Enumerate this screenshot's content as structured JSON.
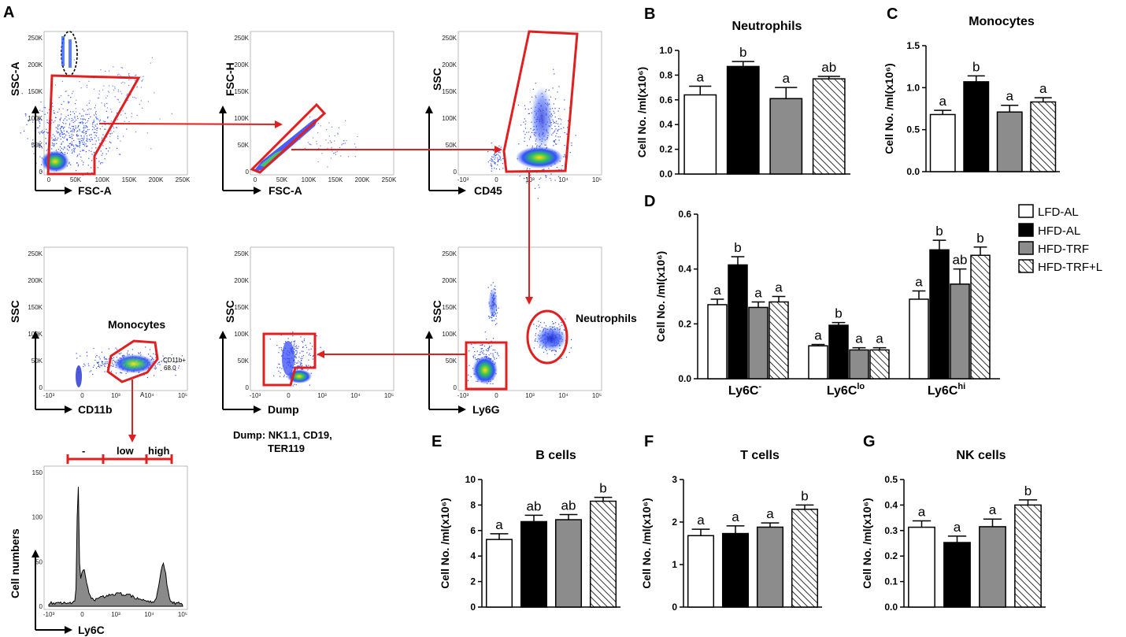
{
  "panels": {
    "A": "A",
    "B": "B",
    "C": "C",
    "D": "D",
    "E": "E",
    "F": "F",
    "G": "G"
  },
  "groups": [
    {
      "name": "LFD-AL",
      "fill": "#ffffff",
      "pattern": false
    },
    {
      "name": "HFD-AL",
      "fill": "#000000",
      "pattern": false
    },
    {
      "name": "HFD-TRF",
      "fill": "#8c8c8c",
      "pattern": false
    },
    {
      "name": "HFD-TRF+L",
      "fill": "#ffffff",
      "pattern": true
    }
  ],
  "flow": {
    "plots": [
      {
        "id": "p1",
        "xlabel": "FSC-A",
        "ylabel": "SSC-A",
        "xticks": [
          "0",
          "50K",
          "100K",
          "150K",
          "200K",
          "250K"
        ],
        "yticks": [
          "0",
          "50K",
          "100K",
          "150K",
          "200K",
          "250K"
        ]
      },
      {
        "id": "p2",
        "xlabel": "FSC-A",
        "ylabel": "FSC-H",
        "xticks": [
          "0",
          "50K",
          "100K",
          "150K",
          "200K",
          "250K"
        ],
        "yticks": [
          "0",
          "50K",
          "100K",
          "150K",
          "200K",
          "250K"
        ]
      },
      {
        "id": "p3",
        "xlabel": "CD45",
        "ylabel": "SSC",
        "xticks": [
          "-10³",
          "0",
          "10³",
          "10⁴",
          "10⁵"
        ],
        "yticks": [
          "0",
          "50K",
          "100K",
          "150K",
          "200K",
          "250K"
        ]
      },
      {
        "id": "p4",
        "xlabel": "CD11b",
        "ylabel": "SSC",
        "xticks": [
          "-10³",
          "0",
          "10³",
          "10⁴",
          "10⁵"
        ],
        "yticks": [
          "0",
          "50K",
          "100K",
          "150K",
          "200K",
          "250K"
        ]
      },
      {
        "id": "p5",
        "xlabel": "Dump",
        "ylabel": "SSC",
        "xticks": [
          "-10³",
          "0",
          "10³",
          "10⁴",
          "10⁵"
        ],
        "yticks": [
          "0",
          "50K",
          "100K",
          "150K",
          "200K",
          "250K"
        ]
      },
      {
        "id": "p6",
        "xlabel": "Ly6G",
        "ylabel": "SSC",
        "xticks": [
          "-10³",
          "0",
          "10³",
          "10⁴",
          "10⁵"
        ],
        "yticks": [
          "0",
          "50K",
          "100K",
          "150K",
          "200K",
          "250K"
        ]
      },
      {
        "id": "p7",
        "xlabel": "Ly6C",
        "ylabel": "Cell numbers",
        "xticks": [
          "-10³",
          "0",
          "10³",
          "10⁴",
          "10⁵"
        ],
        "yticks": [
          "0",
          "50",
          "100",
          "150"
        ]
      }
    ],
    "gate_labels": {
      "monocytes": "Monocytes",
      "cd11b_gate": "CD11b+",
      "cd11b_pct": "68.0",
      "neutrophils": "Neutrophils",
      "stray": "A"
    },
    "dump_note": [
      "Dump: NK1.1,  CD19,",
      "TER119"
    ],
    "histogram_gates": [
      "-",
      "low",
      "high"
    ]
  },
  "chart_data": [
    {
      "id": "B",
      "type": "bar",
      "title": "Neutrophils",
      "ylabel": "Cell No. /ml(x10⁶)",
      "ylim": [
        0,
        1.0
      ],
      "yticks": [
        "0.0",
        "0.2",
        "0.4",
        "0.6",
        "0.8",
        "1.0"
      ],
      "values": [
        0.64,
        0.87,
        0.61,
        0.77
      ],
      "errors": [
        0.07,
        0.04,
        0.09,
        0.02
      ],
      "sig": [
        "a",
        "b",
        "a",
        "ab"
      ]
    },
    {
      "id": "C",
      "type": "bar",
      "title": "Monocytes",
      "ylabel": "Cell No. /ml(x10⁶)",
      "ylim": [
        0,
        1.5
      ],
      "yticks": [
        "0.0",
        "0.5",
        "1.0",
        "1.5"
      ],
      "values": [
        0.68,
        1.07,
        0.71,
        0.83
      ],
      "errors": [
        0.05,
        0.07,
        0.08,
        0.05
      ],
      "sig": [
        "a",
        "b",
        "a",
        "a"
      ]
    },
    {
      "id": "D",
      "type": "bar",
      "title": "",
      "ylabel": "Cell No. /ml(x10⁶)",
      "ylim": [
        0,
        0.6
      ],
      "yticks": [
        "0.0",
        "0.2",
        "0.4",
        "0.6"
      ],
      "categories": [
        {
          "base": "Ly6C",
          "sup": "-"
        },
        {
          "base": "Ly6C",
          "sup": "lo"
        },
        {
          "base": "Ly6C",
          "sup": "hi"
        }
      ],
      "series": [
        {
          "name": "LFD-AL",
          "values": [
            0.27,
            0.12,
            0.29
          ],
          "errors": [
            0.02,
            0.005,
            0.03
          ],
          "sig": [
            "a",
            "a",
            "a"
          ]
        },
        {
          "name": "HFD-AL",
          "values": [
            0.415,
            0.195,
            0.47
          ],
          "errors": [
            0.03,
            0.01,
            0.035
          ],
          "sig": [
            "b",
            "b",
            "b"
          ]
        },
        {
          "name": "HFD-TRF",
          "values": [
            0.26,
            0.105,
            0.345
          ],
          "errors": [
            0.02,
            0.008,
            0.055
          ],
          "sig": [
            "a",
            "a",
            "ab"
          ]
        },
        {
          "name": "HFD-TRF+L",
          "values": [
            0.28,
            0.105,
            0.45
          ],
          "errors": [
            0.02,
            0.008,
            0.03
          ],
          "sig": [
            "a",
            "a",
            "b"
          ]
        }
      ]
    },
    {
      "id": "E",
      "type": "bar",
      "title": "B cells",
      "ylabel": "Cell No. /ml(x10⁶)",
      "ylim": [
        0,
        10
      ],
      "yticks": [
        "0",
        "2",
        "4",
        "6",
        "8",
        "10"
      ],
      "values": [
        5.3,
        6.7,
        6.85,
        8.3
      ],
      "errors": [
        0.45,
        0.5,
        0.4,
        0.3
      ],
      "sig": [
        "a",
        "ab",
        "ab",
        "b"
      ]
    },
    {
      "id": "F",
      "type": "bar",
      "title": "T cells",
      "ylabel": "Cell No. /ml(x10⁶)",
      "ylim": [
        0,
        3
      ],
      "yticks": [
        "0",
        "1",
        "2",
        "3"
      ],
      "values": [
        1.68,
        1.73,
        1.88,
        2.3
      ],
      "errors": [
        0.15,
        0.18,
        0.1,
        0.1
      ],
      "sig": [
        "a",
        "a",
        "a",
        "b"
      ]
    },
    {
      "id": "G",
      "type": "bar",
      "title": "NK cells",
      "ylabel": "Cell No. /ml(x10⁶)",
      "ylim": [
        0,
        0.5
      ],
      "yticks": [
        "0.0",
        "0.1",
        "0.2",
        "0.3",
        "0.4",
        "0.5"
      ],
      "values": [
        0.313,
        0.253,
        0.315,
        0.4
      ],
      "errors": [
        0.025,
        0.025,
        0.03,
        0.02
      ],
      "sig": [
        "a",
        "a",
        "a",
        "b"
      ]
    }
  ]
}
